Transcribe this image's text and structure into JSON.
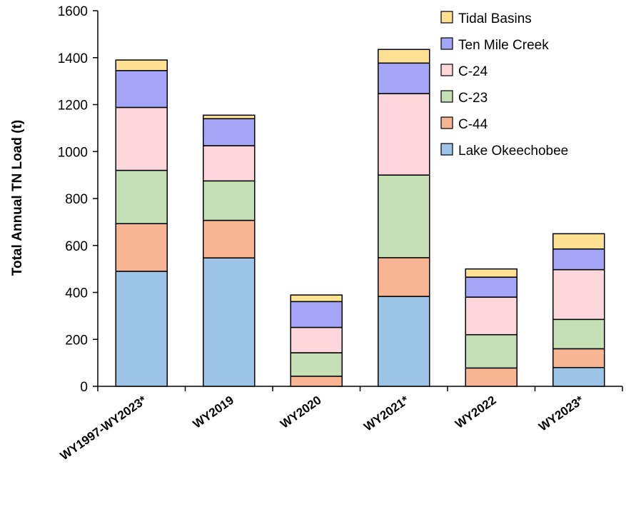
{
  "chart_data": {
    "type": "bar",
    "stacked": true,
    "categories": [
      "WY1997-WY2023*",
      "WY2019",
      "WY2020",
      "WY2021*",
      "WY2022",
      "WY2023*"
    ],
    "series": [
      {
        "name": "Lake Okeechobee",
        "color": "#9dc3e6",
        "values": [
          490,
          547,
          0,
          383,
          0,
          80
        ]
      },
      {
        "name": "C-44",
        "color": "#f8b593",
        "values": [
          203,
          160,
          43,
          165,
          78,
          80
        ]
      },
      {
        "name": "C-23",
        "color": "#c5e0b4",
        "values": [
          227,
          168,
          100,
          352,
          142,
          125
        ]
      },
      {
        "name": "C-24",
        "color": "#fdd7db",
        "values": [
          268,
          150,
          108,
          347,
          160,
          212
        ]
      },
      {
        "name": "Ten Mile Creek",
        "color": "#a4a5f7",
        "values": [
          157,
          115,
          110,
          130,
          85,
          88
        ]
      },
      {
        "name": "Tidal Basins",
        "color": "#ffe194",
        "values": [
          45,
          15,
          28,
          58,
          35,
          65
        ]
      }
    ],
    "legend_order": [
      "Tidal Basins",
      "Ten Mile Creek",
      "C-24",
      "C-23",
      "C-44",
      "Lake Okeechobee"
    ],
    "xlabel": "",
    "ylabel": "Total Annual TN Load (t)",
    "ylim": [
      0,
      1600
    ],
    "yticks": [
      0,
      200,
      400,
      600,
      800,
      1000,
      1200,
      1400,
      1600
    ],
    "grid": false,
    "legend_position": "top-right"
  }
}
